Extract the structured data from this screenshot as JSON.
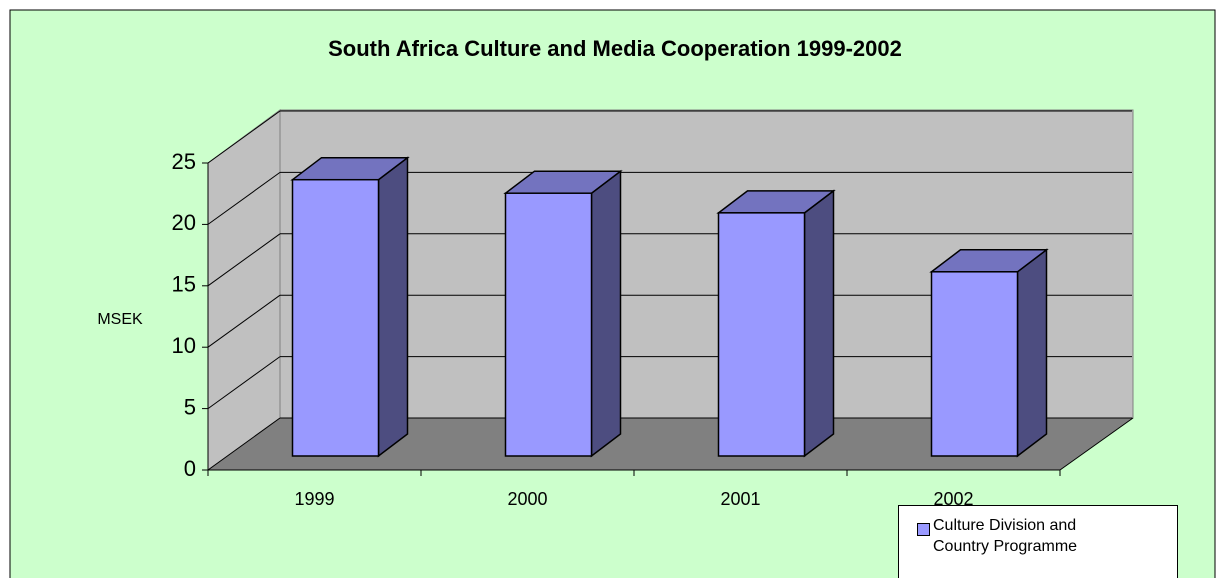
{
  "chart_data": {
    "type": "bar",
    "title": "South Africa Culture and Media Cooperation 1999-2002",
    "y_label": "MSEK",
    "categories": [
      "1999",
      "2000",
      "2001",
      "2002"
    ],
    "series": [
      {
        "name": "Culture Division and Country Programme",
        "color": "#9999ff",
        "values": [
          22.5,
          21.4,
          19.8,
          15
        ]
      }
    ],
    "ylim": [
      0,
      25
    ],
    "yticks": [
      0,
      5,
      10,
      15,
      20,
      25
    ],
    "grid": true,
    "legend": "bottom-right"
  }
}
